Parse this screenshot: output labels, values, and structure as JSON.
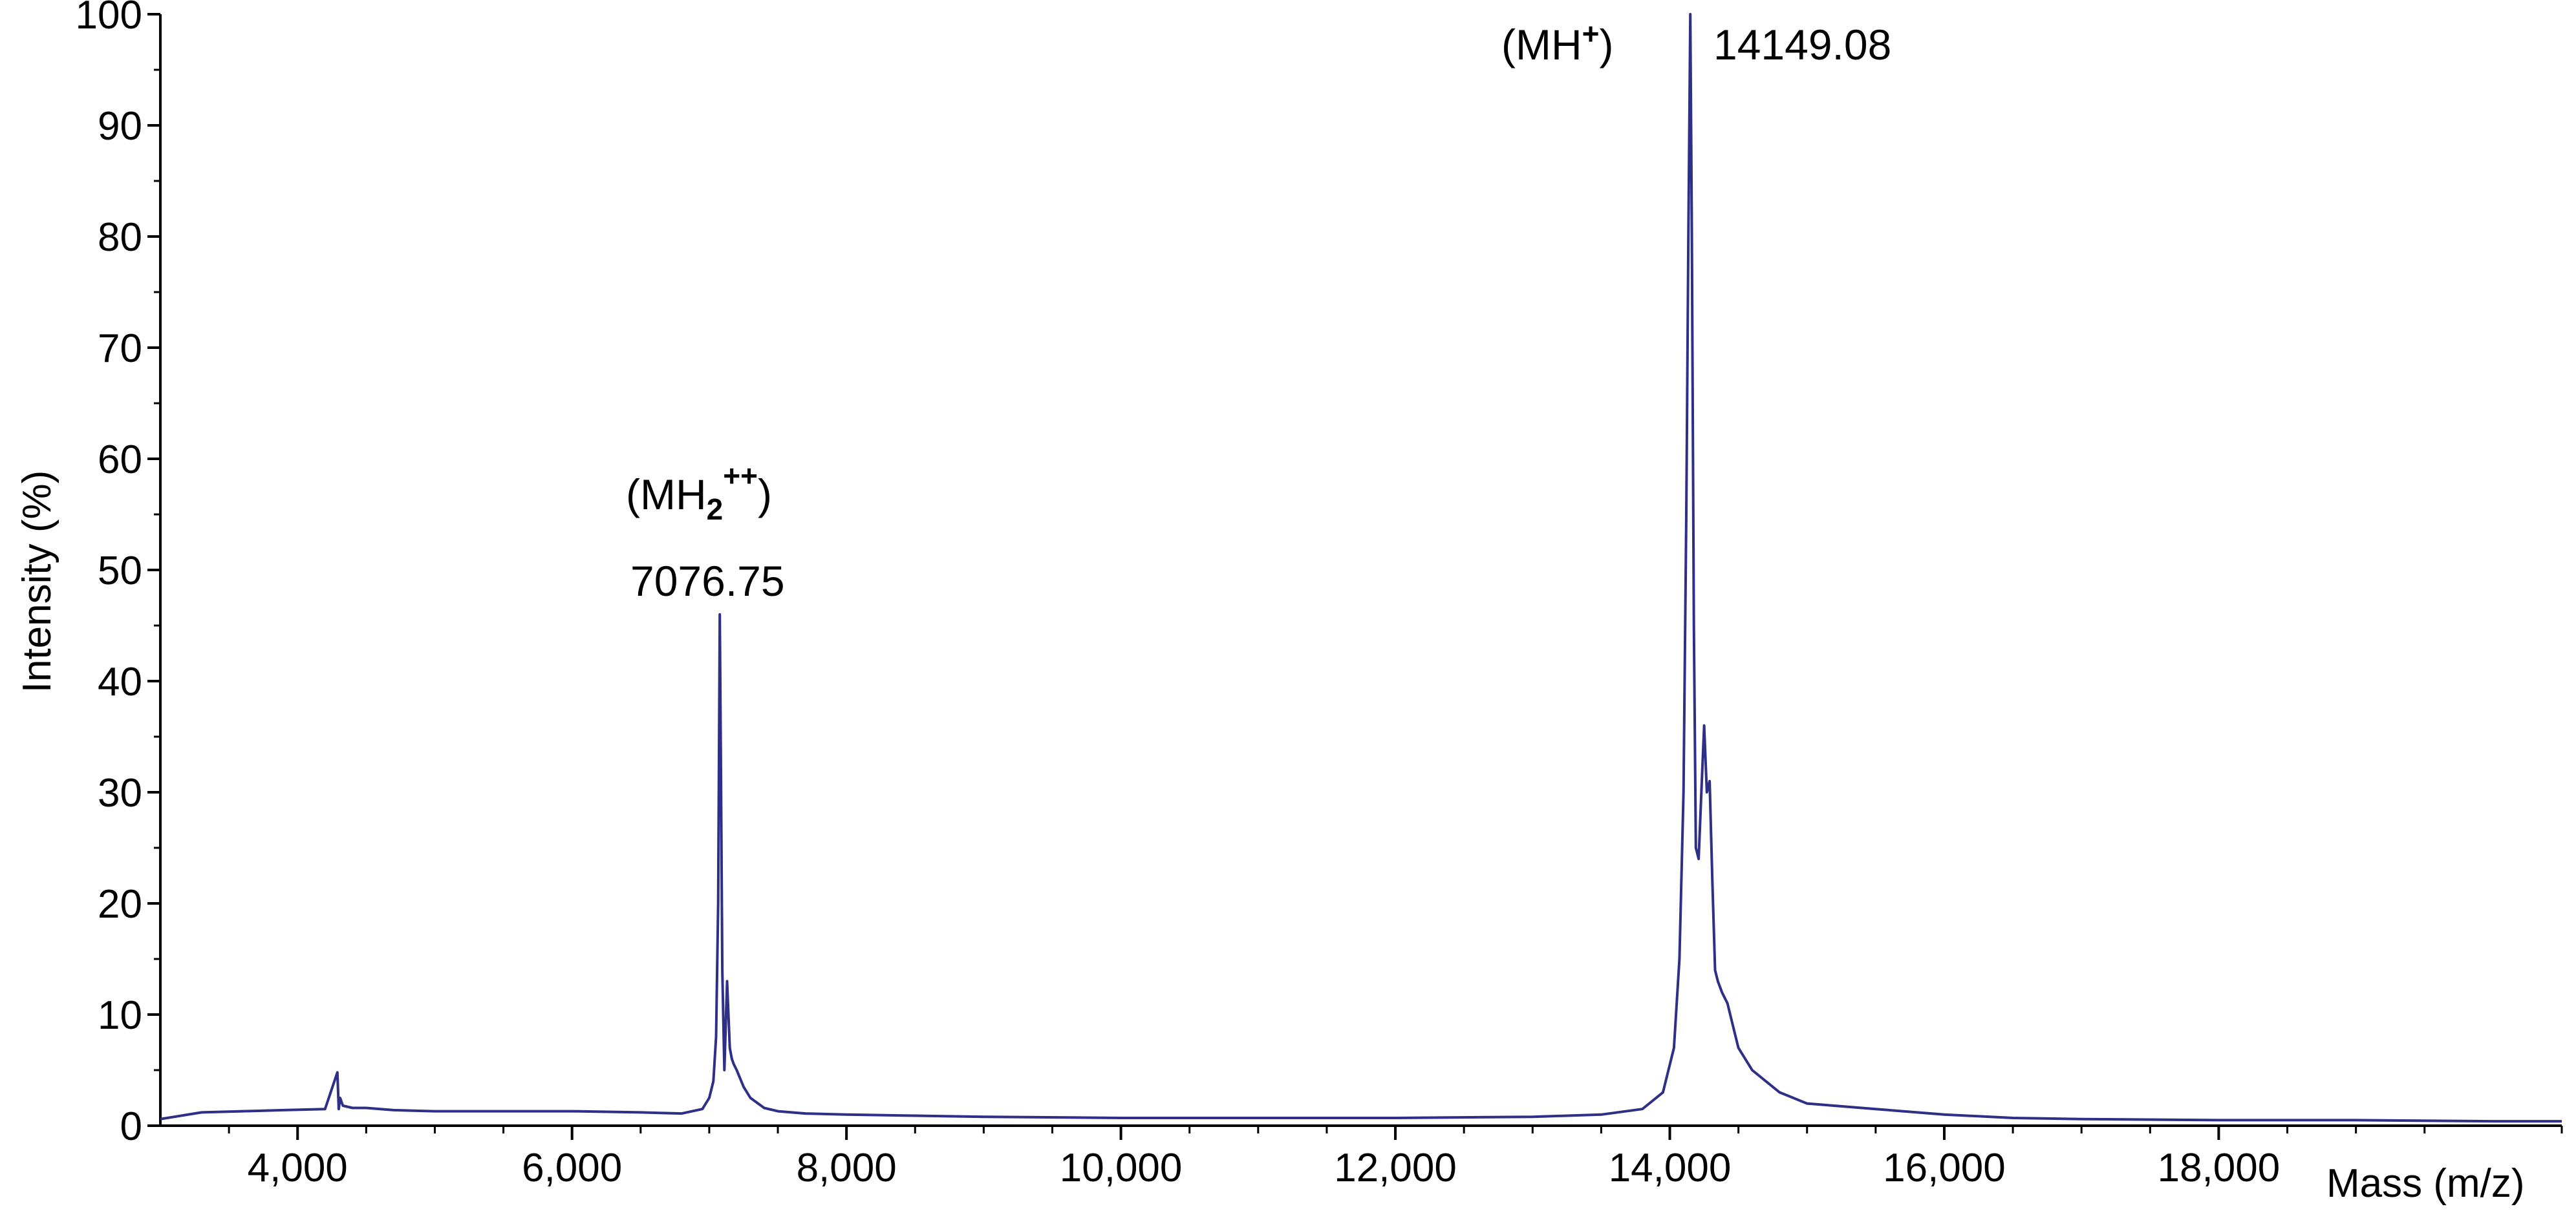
{
  "chart_data": {
    "type": "line",
    "title": "",
    "xlabel": "Mass (m/z)",
    "ylabel": "Intensity (%)",
    "xlim": [
      3000,
      20500
    ],
    "ylim": [
      0,
      100
    ],
    "x_ticks": [
      4000,
      6000,
      8000,
      10000,
      12000,
      14000,
      16000,
      18000
    ],
    "x_tick_labels": [
      "4,000",
      "6,000",
      "8,000",
      "10,000",
      "12,000",
      "14,000",
      "16,000",
      "18,000"
    ],
    "y_ticks": [
      0,
      10,
      20,
      30,
      40,
      50,
      60,
      70,
      80,
      90,
      100
    ],
    "y_tick_labels": [
      "0",
      "10",
      "20",
      "30",
      "40",
      "50",
      "60",
      "70",
      "80",
      "90",
      "100"
    ],
    "line_color": "#2e2f86",
    "grid": false,
    "legend": "none",
    "series": [
      {
        "x": [
          3000,
          3300,
          3600,
          3900,
          4200,
          4290,
          4300,
          4310,
          4330,
          4400,
          4500,
          4700,
          5000,
          5500,
          6000,
          6500,
          6800,
          6950,
          7000,
          7030,
          7050,
          7065,
          7076.75,
          7085,
          7095,
          7110,
          7130,
          7150,
          7165,
          7180,
          7200,
          7250,
          7300,
          7400,
          7500,
          7700,
          8000,
          8500,
          9000,
          10000,
          11000,
          12000,
          13000,
          13500,
          13800,
          13950,
          14030,
          14070,
          14100,
          14120,
          14135,
          14149.08,
          14160,
          14175,
          14190,
          14210,
          14230,
          14250,
          14270,
          14290,
          14310,
          14330,
          14350,
          14380,
          14420,
          14460,
          14500,
          14600,
          14800,
          15000,
          15500,
          16000,
          16500,
          17000,
          18000,
          19000,
          20000,
          20500
        ],
        "y": [
          0.6,
          1.2,
          1.3,
          1.4,
          1.5,
          4.8,
          1.5,
          2.5,
          1.8,
          1.6,
          1.6,
          1.4,
          1.3,
          1.3,
          1.3,
          1.2,
          1.1,
          1.5,
          2.5,
          4,
          8,
          20,
          46,
          32,
          14,
          5,
          13,
          7,
          6,
          5.5,
          5,
          3.5,
          2.5,
          1.6,
          1.3,
          1.1,
          1.0,
          0.9,
          0.8,
          0.7,
          0.7,
          0.7,
          0.8,
          1.0,
          1.5,
          3,
          7,
          15,
          30,
          55,
          80,
          100,
          81,
          45,
          25,
          24,
          30,
          36,
          30,
          31,
          22,
          14,
          13,
          12,
          11,
          9,
          7,
          5,
          3,
          2,
          1.5,
          1.0,
          0.7,
          0.6,
          0.5,
          0.5,
          0.4,
          0.4
        ]
      }
    ],
    "annotations": [
      {
        "label": "(MH",
        "superscript": "+",
        "label_end": ")",
        "value": "14149.08",
        "x": 14149.08
      },
      {
        "label": "(MH",
        "subscript": "2",
        "superscript": "++",
        "label_end": ")",
        "value": "7076.75",
        "x": 7076.75
      }
    ]
  }
}
